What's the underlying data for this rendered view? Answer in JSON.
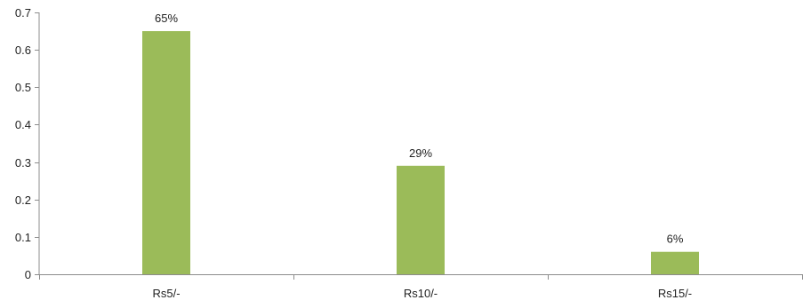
{
  "chart_data": {
    "type": "bar",
    "title": "",
    "xlabel": "",
    "ylabel": "",
    "categories": [
      "Rs5/-",
      "Rs10/-",
      "Rs15/-"
    ],
    "values": [
      0.65,
      0.29,
      0.06
    ],
    "data_labels": [
      "65%",
      "29%",
      "6%"
    ],
    "ylim": [
      0,
      0.7
    ],
    "yticks": [
      0,
      0.1,
      0.2,
      0.3,
      0.4,
      0.5,
      0.6,
      0.7
    ],
    "ytick_labels": [
      "0",
      "0.1",
      "0.2",
      "0.3",
      "0.4",
      "0.5",
      "0.6",
      "0.7"
    ],
    "grid": false,
    "legend": "none",
    "colors": {
      "bar": "#9bbb59",
      "bar_edge": "#8aab4a",
      "axis": "#8c8c8c",
      "text": "#222222"
    }
  }
}
